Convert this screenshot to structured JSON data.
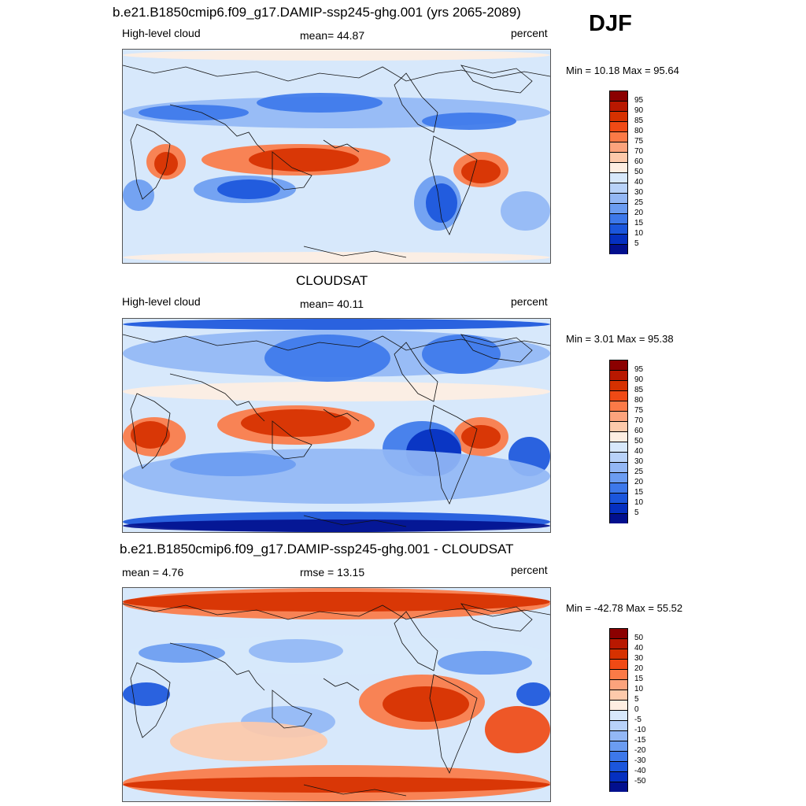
{
  "season": "DJF",
  "panels": [
    {
      "title": "b.e21.B1850cmip6.f09_g17.DAMIP-ssp245-ghg.001 (yrs 2065-2089)",
      "left_label": "High-level cloud",
      "center_label": "mean=  44.87",
      "right_label": "percent",
      "minmax": "Min =  10.18 Max =  95.64",
      "map_kind": "model",
      "colorbar": {
        "ticks": [
          "95",
          "90",
          "85",
          "80",
          "75",
          "70",
          "60",
          "50",
          "40",
          "30",
          "25",
          "20",
          "15",
          "10",
          "5"
        ],
        "colors": [
          "#8b0000",
          "#b81800",
          "#d63100",
          "#f04a15",
          "#fb7a47",
          "#fca37c",
          "#fdc9aa",
          "#feeee2",
          "#d7e8fb",
          "#b8d2f9",
          "#93b7f5",
          "#6b9cf1",
          "#3d78ea",
          "#1b56dc",
          "#0530c0",
          "#02108e"
        ]
      }
    },
    {
      "title": "CLOUDSAT",
      "left_label": "High-level cloud",
      "center_label": "mean=  40.11",
      "right_label": "percent",
      "minmax": "Min =   3.01 Max =  95.38",
      "map_kind": "obs",
      "colorbar": {
        "ticks": [
          "95",
          "90",
          "85",
          "80",
          "75",
          "70",
          "60",
          "50",
          "40",
          "30",
          "25",
          "20",
          "15",
          "10",
          "5"
        ],
        "colors": [
          "#8b0000",
          "#b81800",
          "#d63100",
          "#f04a15",
          "#fb7a47",
          "#fca37c",
          "#fdc9aa",
          "#feeee2",
          "#d7e8fb",
          "#b8d2f9",
          "#93b7f5",
          "#6b9cf1",
          "#3d78ea",
          "#1b56dc",
          "#0530c0",
          "#02108e"
        ]
      }
    },
    {
      "title": "b.e21.B1850cmip6.f09_g17.DAMIP-ssp245-ghg.001 - CLOUDSAT",
      "left_label": "mean =   4.76",
      "center_label": "rmse =  13.15",
      "right_label": "percent",
      "minmax": "Min = -42.78 Max =  55.52",
      "map_kind": "diff",
      "colorbar": {
        "ticks": [
          "50",
          "40",
          "30",
          "20",
          "15",
          "10",
          "5",
          "0",
          "-5",
          "-10",
          "-15",
          "-20",
          "-30",
          "-40",
          "-50"
        ],
        "colors": [
          "#8b0000",
          "#b81800",
          "#d63100",
          "#f04a15",
          "#fb7a47",
          "#fca37c",
          "#fdc9aa",
          "#feeee2",
          "#d7e8fb",
          "#b8d2f9",
          "#93b7f5",
          "#6b9cf1",
          "#3d78ea",
          "#1b56dc",
          "#0530c0",
          "#02108e"
        ]
      }
    }
  ]
}
